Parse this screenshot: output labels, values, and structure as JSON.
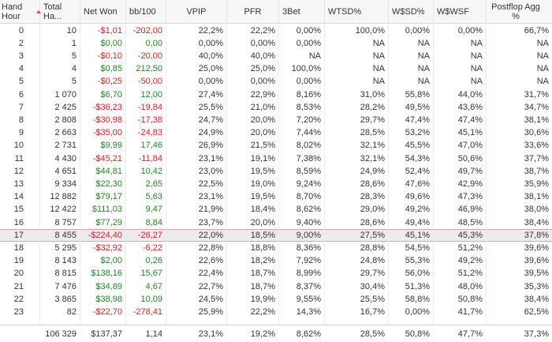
{
  "columns": [
    {
      "key": "hour",
      "label": "Hand Hour",
      "align": "l"
    },
    {
      "key": "total",
      "label": "Total Ha...",
      "align": "l"
    },
    {
      "key": "net",
      "label": "Net Won",
      "align": "l"
    },
    {
      "key": "bb",
      "label": "bb/100",
      "align": "l"
    },
    {
      "key": "vpip",
      "label": "VPIP",
      "align": "c"
    },
    {
      "key": "pfr",
      "label": "PFR",
      "align": "c"
    },
    {
      "key": "bet3",
      "label": "3Bet",
      "align": "l"
    },
    {
      "key": "wtsd",
      "label": "WTSD%",
      "align": "l"
    },
    {
      "key": "wssd",
      "label": "W$SD%",
      "align": "l"
    },
    {
      "key": "wswsf",
      "label": "W$WSF",
      "align": "l"
    },
    {
      "key": "pfa",
      "label": "Postflop Agg %",
      "align": "l"
    }
  ],
  "sort": {
    "column": "hour",
    "direction": "ascending"
  },
  "selected_row": 17,
  "colors": {
    "negative": "#e02020",
    "positive": "#1f8a1f",
    "selection_border": "#e2a3a3"
  },
  "rows": [
    {
      "hour": "0",
      "total": "10",
      "net": "-$1,01",
      "bb": "-202,00",
      "vpip": "22,2%",
      "pfr": "22,2%",
      "bet3": "0,00%",
      "wtsd": "100,0%",
      "wssd": "0,00%",
      "wswsf": "0,00%",
      "pfa": "66,7%"
    },
    {
      "hour": "2",
      "total": "1",
      "net": "$0,00",
      "bb": "0,00",
      "vpip": "0,00%",
      "pfr": "0,00%",
      "bet3": "0,00%",
      "wtsd": "NA",
      "wssd": "NA",
      "wswsf": "NA",
      "pfa": "NA"
    },
    {
      "hour": "3",
      "total": "5",
      "net": "-$0,10",
      "bb": "-20,00",
      "vpip": "40,0%",
      "pfr": "40,0%",
      "bet3": "NA",
      "wtsd": "NA",
      "wssd": "NA",
      "wswsf": "NA",
      "pfa": "NA"
    },
    {
      "hour": "4",
      "total": "4",
      "net": "$0,85",
      "bb": "212,50",
      "vpip": "25,0%",
      "pfr": "25,0%",
      "bet3": "100,0%",
      "wtsd": "NA",
      "wssd": "NA",
      "wswsf": "NA",
      "pfa": "NA"
    },
    {
      "hour": "5",
      "total": "5",
      "net": "-$0,25",
      "bb": "-50,00",
      "vpip": "0,00%",
      "pfr": "0,00%",
      "bet3": "0,00%",
      "wtsd": "NA",
      "wssd": "NA",
      "wswsf": "NA",
      "pfa": "NA"
    },
    {
      "hour": "6",
      "total": "1 070",
      "net": "$6,70",
      "bb": "12,00",
      "vpip": "27,4%",
      "pfr": "22,9%",
      "bet3": "8,16%",
      "wtsd": "31,0%",
      "wssd": "55,8%",
      "wswsf": "44,0%",
      "pfa": "31,7%"
    },
    {
      "hour": "7",
      "total": "2 425",
      "net": "-$36,23",
      "bb": "-19,84",
      "vpip": "25,5%",
      "pfr": "21,0%",
      "bet3": "8,53%",
      "wtsd": "28,2%",
      "wssd": "49,5%",
      "wswsf": "43,6%",
      "pfa": "34,7%"
    },
    {
      "hour": "8",
      "total": "2 808",
      "net": "-$30,98",
      "bb": "-17,38",
      "vpip": "24,7%",
      "pfr": "20,0%",
      "bet3": "7,20%",
      "wtsd": "29,7%",
      "wssd": "47,4%",
      "wswsf": "47,4%",
      "pfa": "38,1%"
    },
    {
      "hour": "9",
      "total": "2 663",
      "net": "-$35,00",
      "bb": "-24,83",
      "vpip": "24,9%",
      "pfr": "20,0%",
      "bet3": "7,44%",
      "wtsd": "28,5%",
      "wssd": "53,2%",
      "wswsf": "45,1%",
      "pfa": "30,6%"
    },
    {
      "hour": "10",
      "total": "2 731",
      "net": "$9,99",
      "bb": "17,46",
      "vpip": "26,9%",
      "pfr": "21,5%",
      "bet3": "8,02%",
      "wtsd": "32,1%",
      "wssd": "45,5%",
      "wswsf": "47,0%",
      "pfa": "33,6%"
    },
    {
      "hour": "11",
      "total": "4 430",
      "net": "-$45,21",
      "bb": "-11,84",
      "vpip": "23,1%",
      "pfr": "19,1%",
      "bet3": "7,38%",
      "wtsd": "32,1%",
      "wssd": "54,3%",
      "wswsf": "50,6%",
      "pfa": "37,7%"
    },
    {
      "hour": "12",
      "total": "4 651",
      "net": "$44,81",
      "bb": "10,42",
      "vpip": "23,0%",
      "pfr": "19,5%",
      "bet3": "8,59%",
      "wtsd": "24,9%",
      "wssd": "52,4%",
      "wswsf": "49,7%",
      "pfa": "38,7%"
    },
    {
      "hour": "13",
      "total": "9 334",
      "net": "$22,30",
      "bb": "2,65",
      "vpip": "22,5%",
      "pfr": "19,0%",
      "bet3": "9,24%",
      "wtsd": "28,6%",
      "wssd": "47,6%",
      "wswsf": "42,9%",
      "pfa": "35,9%"
    },
    {
      "hour": "14",
      "total": "12 882",
      "net": "$79,17",
      "bb": "5,63",
      "vpip": "23,1%",
      "pfr": "19,5%",
      "bet3": "8,70%",
      "wtsd": "28,3%",
      "wssd": "49,6%",
      "wswsf": "47,3%",
      "pfa": "38,1%"
    },
    {
      "hour": "15",
      "total": "12 422",
      "net": "$111,03",
      "bb": "9,47",
      "vpip": "21,9%",
      "pfr": "18,4%",
      "bet3": "8,62%",
      "wtsd": "29,0%",
      "wssd": "49,2%",
      "wswsf": "46,9%",
      "pfa": "38,0%"
    },
    {
      "hour": "16",
      "total": "8 757",
      "net": "$77,29",
      "bb": "8,84",
      "vpip": "23,7%",
      "pfr": "20,0%",
      "bet3": "9,40%",
      "wtsd": "28,6%",
      "wssd": "49,4%",
      "wswsf": "48,5%",
      "pfa": "38,4%"
    },
    {
      "hour": "17",
      "total": "8 455",
      "net": "-$224,40",
      "bb": "-26,27",
      "vpip": "22,0%",
      "pfr": "18,5%",
      "bet3": "9,00%",
      "wtsd": "27,5%",
      "wssd": "45,1%",
      "wswsf": "45,3%",
      "pfa": "37,8%"
    },
    {
      "hour": "18",
      "total": "5 295",
      "net": "-$32,92",
      "bb": "-6,22",
      "vpip": "22,8%",
      "pfr": "18,8%",
      "bet3": "8,36%",
      "wtsd": "28,8%",
      "wssd": "54,5%",
      "wswsf": "51,2%",
      "pfa": "39,6%"
    },
    {
      "hour": "19",
      "total": "8 143",
      "net": "$2,00",
      "bb": "0,26",
      "vpip": "22,6%",
      "pfr": "18,2%",
      "bet3": "7,92%",
      "wtsd": "24,8%",
      "wssd": "55,3%",
      "wswsf": "49,2%",
      "pfa": "39,6%"
    },
    {
      "hour": "20",
      "total": "8 815",
      "net": "$138,16",
      "bb": "15,67",
      "vpip": "22,4%",
      "pfr": "18,7%",
      "bet3": "8,99%",
      "wtsd": "29,7%",
      "wssd": "56,0%",
      "wswsf": "51,2%",
      "pfa": "39,5%"
    },
    {
      "hour": "21",
      "total": "7 476",
      "net": "$34,89",
      "bb": "4,67",
      "vpip": "22,7%",
      "pfr": "18,7%",
      "bet3": "8,37%",
      "wtsd": "30,4%",
      "wssd": "51,3%",
      "wswsf": "48,0%",
      "pfa": "35,3%"
    },
    {
      "hour": "22",
      "total": "3 865",
      "net": "$38,98",
      "bb": "10,09",
      "vpip": "24,5%",
      "pfr": "19,9%",
      "bet3": "9,55%",
      "wtsd": "25,5%",
      "wssd": "58,8%",
      "wswsf": "50,8%",
      "pfa": "38,4%"
    },
    {
      "hour": "23",
      "total": "82",
      "net": "-$22,70",
      "bb": "-278,41",
      "vpip": "25,9%",
      "pfr": "22,2%",
      "bet3": "14,3%",
      "wtsd": "16,7%",
      "wssd": "0,00%",
      "wswsf": "41,7%",
      "pfa": "62,5%"
    }
  ],
  "totals": {
    "hour": "",
    "total": "106 329",
    "net": "$137,37",
    "bb": "1,14",
    "vpip": "23,1%",
    "pfr": "19,2%",
    "bet3": "8,62%",
    "wtsd": "28,5%",
    "wssd": "50,8%",
    "wswsf": "47,7%",
    "pfa": "37,3%"
  }
}
